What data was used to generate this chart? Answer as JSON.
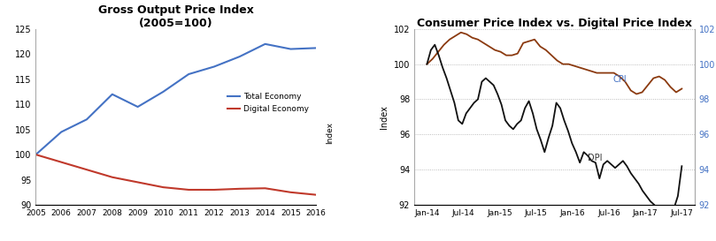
{
  "left": {
    "title": "Gross Output Price Index",
    "subtitle": "(2005=100)",
    "years": [
      2005,
      2006,
      2007,
      2008,
      2009,
      2010,
      2011,
      2012,
      2013,
      2014,
      2015,
      2016
    ],
    "total_economy": [
      100,
      104.5,
      107.0,
      112.0,
      109.5,
      112.5,
      116.0,
      117.5,
      119.5,
      122.0,
      121.0,
      121.2
    ],
    "digital_economy": [
      100,
      98.5,
      97.0,
      95.5,
      94.5,
      93.5,
      93.0,
      93.0,
      93.2,
      93.3,
      92.5,
      92.0
    ],
    "total_color": "#4472C4",
    "digital_color": "#C0392B",
    "ylim": [
      90,
      125
    ],
    "yticks": [
      90,
      95,
      100,
      105,
      110,
      115,
      120,
      125
    ],
    "legend_labels": [
      "Total Economy",
      "Digital Economy"
    ]
  },
  "right": {
    "title": "Consumer Price Index vs. Digital Price Index",
    "xlabel_ticks": [
      "Jan-14",
      "Jul-14",
      "Jan-15",
      "Jul-15",
      "Jan-16",
      "Jul-16",
      "Jan-17",
      "Jul-17"
    ],
    "n_points": 46,
    "cpi": [
      100.0,
      100.3,
      100.7,
      101.1,
      101.4,
      101.6,
      101.8,
      101.7,
      101.5,
      101.4,
      101.2,
      101.0,
      100.8,
      100.7,
      100.5,
      100.5,
      100.6,
      101.2,
      101.3,
      101.4,
      101.0,
      100.8,
      100.5,
      100.2,
      100.0,
      100.0,
      99.9,
      99.8,
      99.7,
      99.6,
      99.5,
      99.5,
      99.5,
      99.5,
      99.3,
      99.0,
      98.5,
      98.3,
      98.4,
      98.8,
      99.2,
      99.3,
      99.1,
      98.7,
      98.4,
      98.6
    ],
    "dpi": [
      100.0,
      100.8,
      101.1,
      100.5,
      99.8,
      99.2,
      98.5,
      97.8,
      96.8,
      96.6,
      97.2,
      97.5,
      97.8,
      98.0,
      99.0,
      99.2,
      99.0,
      98.8,
      98.3,
      97.7,
      96.8,
      96.5,
      96.3,
      96.6,
      96.8,
      97.5,
      97.9,
      97.2,
      96.3,
      95.7,
      95.0,
      95.8,
      96.5,
      97.8,
      97.5,
      96.8,
      96.2,
      95.5,
      95.0,
      94.4,
      95.0,
      95.2,
      94.8,
      94.5,
      94.3,
      94.5
    ],
    "dpi_extended": [
      100.0,
      100.8,
      101.1,
      100.5,
      99.8,
      99.2,
      98.5,
      97.8,
      96.8,
      96.6,
      97.2,
      97.5,
      97.8,
      98.0,
      99.0,
      99.2,
      99.0,
      98.8,
      98.3,
      97.7,
      96.8,
      96.5,
      96.3,
      96.6,
      96.8,
      97.5,
      97.9,
      97.2,
      96.3,
      95.7,
      95.0,
      95.8,
      96.5,
      97.8,
      97.5,
      96.8,
      96.2,
      95.5,
      95.0,
      94.4,
      95.0,
      94.8,
      94.5,
      94.4,
      93.5,
      94.3,
      94.5,
      94.3,
      94.1,
      94.3,
      94.5,
      94.2,
      93.8,
      93.5,
      93.2,
      92.8,
      92.5,
      92.2,
      92.0,
      91.5,
      91.2,
      91.0,
      91.5,
      91.8,
      92.5,
      94.2
    ],
    "cpi_color": "#8B3A0F",
    "dpi_color": "#111111",
    "ylim": [
      92,
      102
    ],
    "yticks": [
      92,
      94,
      96,
      98,
      100,
      102
    ],
    "ylabel": "Index",
    "right_ytick_color": "#4472C4",
    "cpi_label": "CPI",
    "dpi_label": "DPI"
  }
}
